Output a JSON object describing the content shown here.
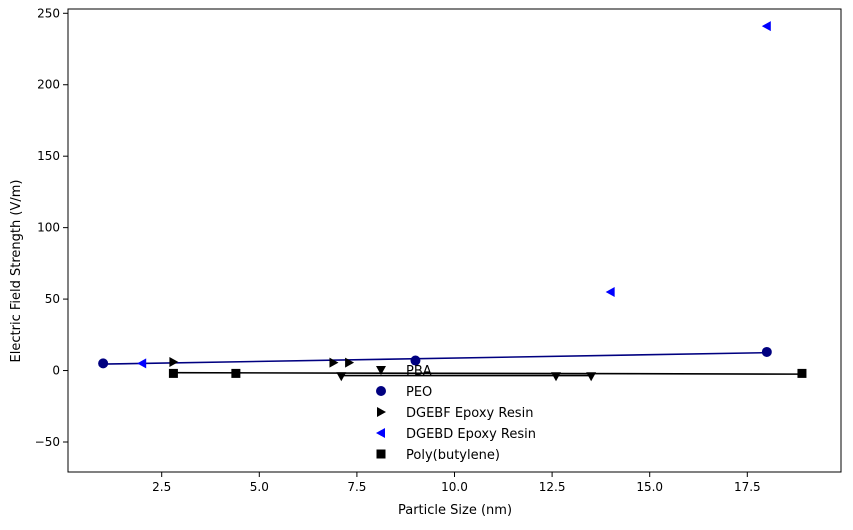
{
  "chart_data": {
    "type": "scatter",
    "title": "",
    "xlabel": "Particle Size (nm)",
    "ylabel": "Electric Field Strength (V/m)",
    "xlim": [
      0.1,
      19.9
    ],
    "ylim": [
      -71,
      253
    ],
    "x_ticks": [
      2.5,
      5.0,
      7.5,
      10.0,
      12.5,
      15.0,
      17.5
    ],
    "x_tick_labels": [
      "2.5",
      "5.0",
      "7.5",
      "10.0",
      "12.5",
      "15.0",
      "17.5"
    ],
    "y_ticks": [
      -50,
      0,
      50,
      100,
      150,
      200,
      250
    ],
    "y_tick_labels": [
      "−50",
      "0",
      "50",
      "100",
      "150",
      "200",
      "250"
    ],
    "grid": false,
    "legend_position": "bottom-center",
    "series": [
      {
        "name": "PBA",
        "marker": "triangle-down",
        "color": "#000000",
        "points": [
          [
            7.1,
            -4
          ],
          [
            12.6,
            -4
          ],
          [
            13.5,
            -4
          ]
        ]
      },
      {
        "name": "PEO",
        "marker": "circle",
        "color": "#000080",
        "points": [
          [
            1.0,
            5
          ],
          [
            9.0,
            7
          ],
          [
            18.0,
            13
          ]
        ]
      },
      {
        "name": "DGEBF Epoxy Resin",
        "marker": "triangle-right",
        "color": "#000000",
        "points": [
          [
            2.8,
            6
          ],
          [
            6.9,
            5.5
          ],
          [
            7.3,
            5.5
          ]
        ]
      },
      {
        "name": "DGEBD Epoxy Resin",
        "marker": "triangle-left",
        "color": "#0000ff",
        "points": [
          [
            2.0,
            5
          ],
          [
            14.0,
            55
          ],
          [
            18.0,
            241
          ]
        ]
      },
      {
        "name": "Poly(butylene)",
        "marker": "square",
        "color": "#000000",
        "points": [
          [
            2.8,
            -2
          ],
          [
            4.4,
            -2
          ],
          [
            18.9,
            -2
          ]
        ]
      }
    ],
    "lines": [
      {
        "label_of": "PEO",
        "color": "#000080",
        "points": [
          [
            1.0,
            4.5
          ],
          [
            18.0,
            12.5
          ]
        ]
      },
      {
        "label_of": "Poly(butylene)",
        "color": "#000000",
        "points": [
          [
            2.8,
            -1.5
          ],
          [
            18.9,
            -2.5
          ]
        ]
      },
      {
        "label_of": "PBA",
        "color": "#000000",
        "points": [
          [
            7.1,
            -3.5
          ],
          [
            13.5,
            -3.5
          ]
        ]
      }
    ]
  }
}
